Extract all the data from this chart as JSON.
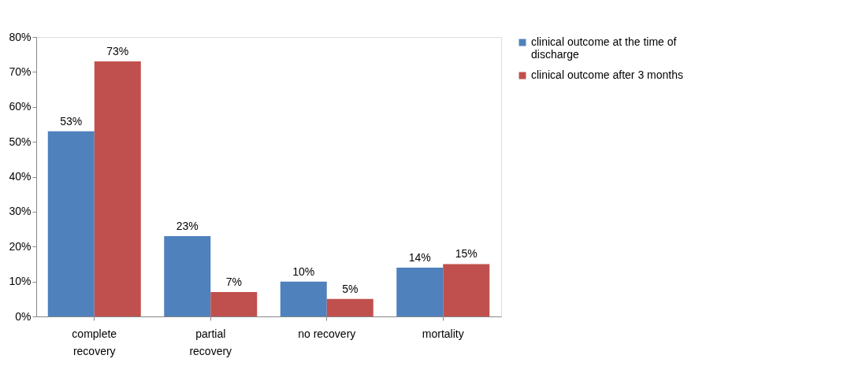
{
  "chart_data": {
    "type": "bar",
    "categories": [
      "complete recovery",
      "partial recovery",
      "no recovery",
      "mortality"
    ],
    "series": [
      {
        "name": "clinical outcome at the time of discharge",
        "color": "#4f81bd",
        "values": [
          53,
          23,
          10,
          14
        ],
        "value_labels": [
          "53%",
          "23%",
          "10%",
          "14%"
        ]
      },
      {
        "name": "clinical outcome after 3 months",
        "color": "#c0504d",
        "values": [
          73,
          7,
          5,
          15
        ],
        "value_labels": [
          "73%",
          "7%",
          "5%",
          "15%"
        ]
      }
    ],
    "ylim": [
      0,
      80
    ],
    "yticks": [
      {
        "value": 0,
        "label": "0%"
      },
      {
        "value": 10,
        "label": "10%"
      },
      {
        "value": 20,
        "label": "20%"
      },
      {
        "value": 30,
        "label": "30%"
      },
      {
        "value": 40,
        "label": "40%"
      },
      {
        "value": 50,
        "label": "50%"
      },
      {
        "value": 60,
        "label": "60%"
      },
      {
        "value": 70,
        "label": "70%"
      },
      {
        "value": 80,
        "label": "80%"
      }
    ],
    "grid": false,
    "legend": "right"
  }
}
